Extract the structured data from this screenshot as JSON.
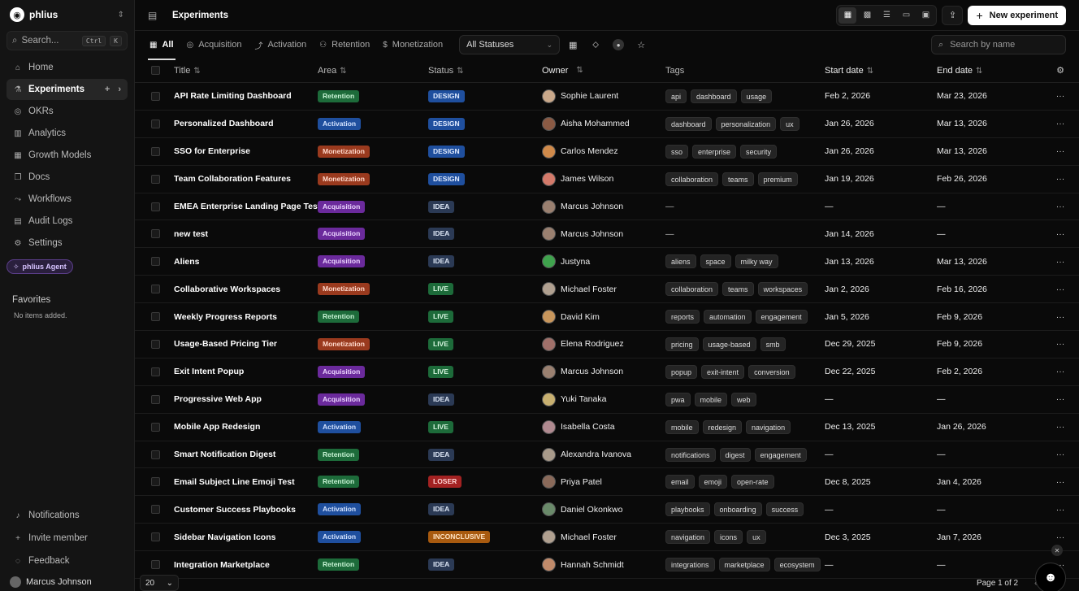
{
  "sidebar": {
    "brand": "phlius",
    "search_label": "Search...",
    "search_kbd": [
      "Ctrl",
      "K"
    ],
    "nav": [
      {
        "label": "Home",
        "icon": "home-icon"
      },
      {
        "label": "Experiments",
        "icon": "flask-icon",
        "active": true
      },
      {
        "label": "OKRs",
        "icon": "target-icon"
      },
      {
        "label": "Analytics",
        "icon": "bar-chart-icon"
      },
      {
        "label": "Growth Models",
        "icon": "grid-icon"
      },
      {
        "label": "Docs",
        "icon": "book-icon"
      },
      {
        "label": "Workflows",
        "icon": "workflow-icon"
      },
      {
        "label": "Audit Logs",
        "icon": "clipboard-icon"
      },
      {
        "label": "Settings",
        "icon": "gear-icon"
      }
    ],
    "agent_label": "phlius Agent",
    "favorites_title": "Favorites",
    "favorites_empty": "No items added.",
    "bottom": [
      {
        "label": "Notifications",
        "icon": "bell-icon"
      },
      {
        "label": "Invite member",
        "icon": "plus-icon"
      },
      {
        "label": "Feedback",
        "icon": "message-icon"
      }
    ],
    "user_name": "Marcus Johnson"
  },
  "topbar": {
    "title": "Experiments",
    "new_button": "New experiment"
  },
  "tabs": [
    {
      "label": "All",
      "active": true
    },
    {
      "label": "Acquisition"
    },
    {
      "label": "Activation"
    },
    {
      "label": "Retention"
    },
    {
      "label": "Monetization"
    }
  ],
  "filters": {
    "status_selected": "All Statuses",
    "search_placeholder": "Search by name"
  },
  "columns": {
    "title": "Title",
    "area": "Area",
    "status": "Status",
    "owner": "Owner",
    "tags": "Tags",
    "start": "Start date",
    "end": "End date"
  },
  "rows": [
    {
      "title": "API Rate Limiting Dashboard",
      "area": "Retention",
      "status": "DESIGN",
      "owner": "Sophie Laurent",
      "tags": [
        "api",
        "dashboard",
        "usage"
      ],
      "start": "Feb 2, 2026",
      "end": "Mar 23, 2026",
      "avatar": "#c9a88a"
    },
    {
      "title": "Personalized Dashboard",
      "area": "Activation",
      "status": "DESIGN",
      "owner": "Aisha Mohammed",
      "tags": [
        "dashboard",
        "personalization",
        "ux"
      ],
      "start": "Jan 26, 2026",
      "end": "Mar 13, 2026",
      "avatar": "#8a5a44"
    },
    {
      "title": "SSO for Enterprise",
      "area": "Monetization",
      "status": "DESIGN",
      "owner": "Carlos Mendez",
      "tags": [
        "sso",
        "enterprise",
        "security"
      ],
      "start": "Jan 26, 2026",
      "end": "Mar 13, 2026",
      "avatar": "#d08a4a"
    },
    {
      "title": "Team Collaboration Features",
      "area": "Monetization",
      "status": "DESIGN",
      "owner": "James Wilson",
      "tags": [
        "collaboration",
        "teams",
        "premium"
      ],
      "start": "Jan 19, 2026",
      "end": "Feb 26, 2026",
      "avatar": "#d47a6a"
    },
    {
      "title": "EMEA Enterprise Landing Page Test",
      "area": "Acquisition",
      "status": "IDEA",
      "owner": "Marcus Johnson",
      "tags": [],
      "start": "—",
      "end": "—",
      "avatar": "#9a8070"
    },
    {
      "title": "new test",
      "area": "Acquisition",
      "status": "IDEA",
      "owner": "Marcus Johnson",
      "tags": [],
      "start": "Jan 14, 2026",
      "end": "—",
      "avatar": "#9a8070"
    },
    {
      "title": "Aliens",
      "area": "Acquisition",
      "status": "IDEA",
      "owner": "Justyna",
      "tags": [
        "aliens",
        "space",
        "milky way"
      ],
      "start": "Jan 13, 2026",
      "end": "Mar 13, 2026",
      "avatar": "#3fa34d"
    },
    {
      "title": "Collaborative Workspaces",
      "area": "Monetization",
      "status": "LIVE",
      "owner": "Michael Foster",
      "tags": [
        "collaboration",
        "teams",
        "workspaces"
      ],
      "start": "Jan 2, 2026",
      "end": "Feb 16, 2026",
      "avatar": "#b0a090"
    },
    {
      "title": "Weekly Progress Reports",
      "area": "Retention",
      "status": "LIVE",
      "owner": "David Kim",
      "tags": [
        "reports",
        "automation",
        "engagement"
      ],
      "start": "Jan 5, 2026",
      "end": "Feb 9, 2026",
      "avatar": "#c8965c"
    },
    {
      "title": "Usage-Based Pricing Tier",
      "area": "Monetization",
      "status": "LIVE",
      "owner": "Elena Rodriguez",
      "tags": [
        "pricing",
        "usage-based",
        "smb"
      ],
      "start": "Dec 29, 2025",
      "end": "Feb 9, 2026",
      "avatar": "#a0706a"
    },
    {
      "title": "Exit Intent Popup",
      "area": "Acquisition",
      "status": "LIVE",
      "owner": "Marcus Johnson",
      "tags": [
        "popup",
        "exit-intent",
        "conversion"
      ],
      "start": "Dec 22, 2025",
      "end": "Feb 2, 2026",
      "avatar": "#9a8070"
    },
    {
      "title": "Progressive Web App",
      "area": "Acquisition",
      "status": "IDEA",
      "owner": "Yuki Tanaka",
      "tags": [
        "pwa",
        "mobile",
        "web"
      ],
      "start": "—",
      "end": "—",
      "avatar": "#c8b070"
    },
    {
      "title": "Mobile App Redesign",
      "area": "Activation",
      "status": "LIVE",
      "owner": "Isabella Costa",
      "tags": [
        "mobile",
        "redesign",
        "navigation"
      ],
      "start": "Dec 13, 2025",
      "end": "Jan 26, 2026",
      "avatar": "#b08a90"
    },
    {
      "title": "Smart Notification Digest",
      "area": "Retention",
      "status": "IDEA",
      "owner": "Alexandra Ivanova",
      "tags": [
        "notifications",
        "digest",
        "engagement"
      ],
      "start": "—",
      "end": "—",
      "avatar": "#a89a8a"
    },
    {
      "title": "Email Subject Line Emoji Test",
      "area": "Retention",
      "status": "LOSER",
      "owner": "Priya Patel",
      "tags": [
        "email",
        "emoji",
        "open-rate"
      ],
      "start": "Dec 8, 2025",
      "end": "Jan 4, 2026",
      "avatar": "#8a6a5a"
    },
    {
      "title": "Customer Success Playbooks",
      "area": "Activation",
      "status": "IDEA",
      "owner": "Daniel Okonkwo",
      "tags": [
        "playbooks",
        "onboarding",
        "success"
      ],
      "start": "—",
      "end": "—",
      "avatar": "#6a8a6a"
    },
    {
      "title": "Sidebar Navigation Icons",
      "area": "Activation",
      "status": "INCONCLUSIVE",
      "owner": "Michael Foster",
      "tags": [
        "navigation",
        "icons",
        "ux"
      ],
      "start": "Dec 3, 2025",
      "end": "Jan 7, 2026",
      "avatar": "#b0a090"
    },
    {
      "title": "Integration Marketplace",
      "area": "Retention",
      "status": "IDEA",
      "owner": "Hannah Schmidt",
      "tags": [
        "integrations",
        "marketplace",
        "ecosystem"
      ],
      "start": "—",
      "end": "—",
      "avatar": "#c08a6a"
    }
  ],
  "pager": {
    "per_page": "20",
    "page_info": "Page 1 of 2"
  }
}
